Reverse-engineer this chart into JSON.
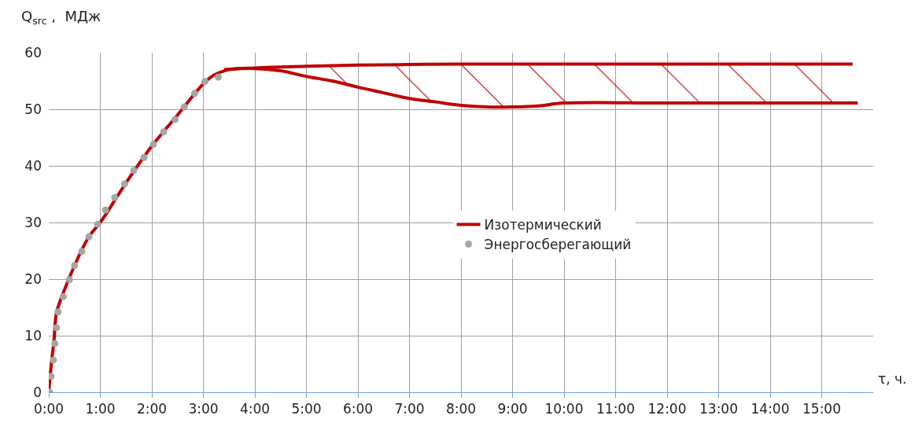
{
  "chart_data": {
    "type": "line",
    "ylabel": "Q$_{src}$ ,  МДж",
    "xlabel": "τ, ч.",
    "xlim": [
      0,
      16
    ],
    "xticks": [
      {
        "value": 0,
        "label": "0:00"
      },
      {
        "value": 1,
        "label": "1:00"
      },
      {
        "value": 2,
        "label": "2:00"
      },
      {
        "value": 3,
        "label": "3:00"
      },
      {
        "value": 4,
        "label": "4:00"
      },
      {
        "value": 5,
        "label": "5:00"
      },
      {
        "value": 6,
        "label": "6:00"
      },
      {
        "value": 7,
        "label": "7:00"
      },
      {
        "value": 8,
        "label": "8:00"
      },
      {
        "value": 9,
        "label": "9:00"
      },
      {
        "value": 10,
        "label": "10:00"
      },
      {
        "value": 11,
        "label": "11:00"
      },
      {
        "value": 12,
        "label": "12:00"
      },
      {
        "value": 13,
        "label": "13:00"
      },
      {
        "value": 14,
        "label": "14:00"
      },
      {
        "value": 15,
        "label": "15:00"
      }
    ],
    "ylim": [
      0,
      60
    ],
    "yticks": [
      0,
      10,
      20,
      30,
      40,
      50,
      60
    ],
    "grid": true,
    "legend": "center",
    "series": [
      {
        "name": "Изотермический",
        "color": "#c00000",
        "marker": "none",
        "x": [
          0,
          0.05,
          0.1,
          0.15,
          0.3,
          0.5,
          0.78,
          1,
          1.5,
          2,
          2.5,
          3,
          3.2,
          3.5,
          4,
          5,
          6,
          7,
          8,
          15.6
        ],
        "values": [
          0,
          5,
          9,
          14,
          18,
          22.4,
          27.5,
          30,
          37,
          43.5,
          49,
          54.5,
          56,
          57,
          57.3,
          57.6,
          57.8,
          57.9,
          58,
          58
        ]
      },
      {
        "color": "#c00000",
        "marker": "none",
        "x": [
          3.4,
          4,
          4.5,
          5,
          5.5,
          6,
          6.5,
          7,
          7.5,
          8,
          8.5,
          9,
          9.5,
          10,
          12,
          15.7
        ],
        "values": [
          57,
          57.2,
          56.8,
          55.8,
          55,
          53.9,
          52.9,
          51.9,
          51.3,
          50.7,
          50.4,
          50.4,
          50.6,
          51.1,
          51.1,
          51.1
        ]
      },
      {
        "name": "Энергосберегающий",
        "type": "scatter",
        "color": "#a6a6a6",
        "marker": "circle",
        "x": [
          0.015,
          0.046,
          0.09,
          0.12,
          0.15,
          0.18,
          0.28,
          0.4,
          0.5,
          0.64,
          0.78,
          0.95,
          1.1,
          1.28,
          1.47,
          1.65,
          1.85,
          2.03,
          2.23,
          2.45,
          2.63,
          2.83,
          3.03,
          3.29
        ],
        "values": [
          0,
          2.8,
          5.7,
          8.6,
          11.4,
          14.2,
          16.9,
          19.9,
          22.4,
          24.9,
          27.5,
          29.7,
          32.2,
          34.4,
          36.8,
          39.2,
          41.5,
          43.8,
          46,
          48.2,
          50.4,
          52.8,
          54.9,
          55.7
        ]
      }
    ]
  }
}
